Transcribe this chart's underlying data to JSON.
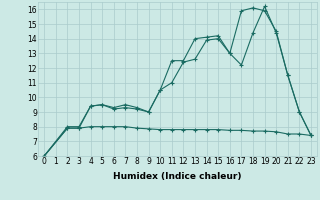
{
  "title": "",
  "xlabel": "Humidex (Indice chaleur)",
  "ylabel": "",
  "xlim": [
    -0.5,
    23.5
  ],
  "ylim": [
    6,
    16.5
  ],
  "xticks": [
    0,
    1,
    2,
    3,
    4,
    5,
    6,
    7,
    8,
    9,
    10,
    11,
    12,
    13,
    14,
    15,
    16,
    17,
    18,
    19,
    20,
    21,
    22,
    23
  ],
  "yticks": [
    6,
    7,
    8,
    9,
    10,
    11,
    12,
    13,
    14,
    15,
    16
  ],
  "bg_color": "#cce9e5",
  "grid_color": "#aacccc",
  "line_color": "#1a6b62",
  "line1_x": [
    0,
    2,
    3,
    4,
    5,
    6,
    7,
    8,
    9,
    10,
    11,
    12,
    13,
    14,
    15,
    16,
    17,
    18,
    19,
    20,
    21,
    22,
    23
  ],
  "line1_y": [
    6,
    7.9,
    7.9,
    8.0,
    8.0,
    8.0,
    8.0,
    7.9,
    7.85,
    7.8,
    7.8,
    7.8,
    7.8,
    7.8,
    7.8,
    7.75,
    7.75,
    7.7,
    7.7,
    7.65,
    7.5,
    7.5,
    7.4
  ],
  "line2_x": [
    0,
    2,
    3,
    4,
    5,
    6,
    7,
    8,
    9,
    10,
    11,
    12,
    13,
    14,
    15,
    16,
    17,
    18,
    19,
    20,
    21,
    22,
    23
  ],
  "line2_y": [
    6,
    8.0,
    8.0,
    9.4,
    9.5,
    9.2,
    9.3,
    9.2,
    9.0,
    10.5,
    11.0,
    12.4,
    12.6,
    13.9,
    14.0,
    13.0,
    12.2,
    14.4,
    16.2,
    14.4,
    11.5,
    9.0,
    7.4
  ],
  "line3_x": [
    0,
    2,
    3,
    4,
    5,
    6,
    7,
    8,
    9,
    10,
    11,
    12,
    13,
    14,
    15,
    16,
    17,
    18,
    19,
    20,
    21,
    22,
    23
  ],
  "line3_y": [
    6,
    7.9,
    7.9,
    9.4,
    9.5,
    9.3,
    9.5,
    9.3,
    9.0,
    10.5,
    12.5,
    12.5,
    14.0,
    14.1,
    14.2,
    13.0,
    15.9,
    16.1,
    15.9,
    14.5,
    11.5,
    9.0,
    7.4
  ],
  "marker": "+",
  "markersize": 3,
  "linewidth": 0.8,
  "tick_fontsize": 5.5,
  "xlabel_fontsize": 6.5
}
